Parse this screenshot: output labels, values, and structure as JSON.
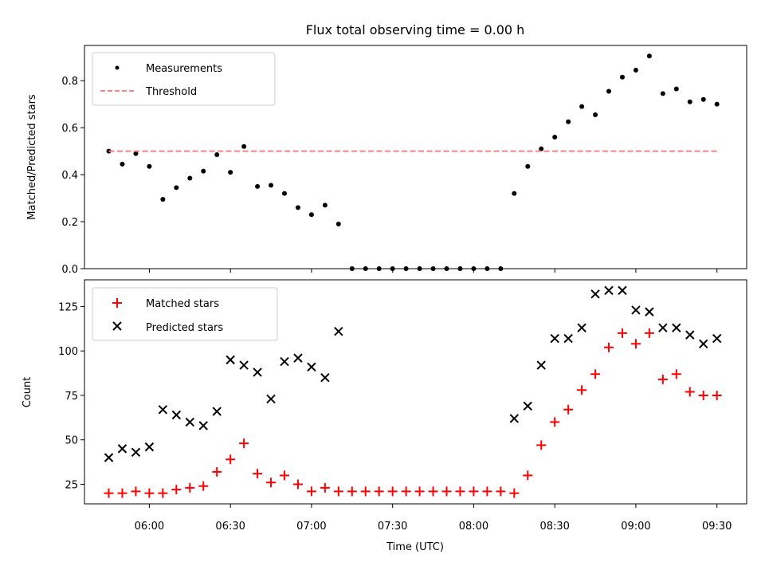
{
  "chart_data": [
    {
      "type": "scatter",
      "title": "Flux total observing time = 0.00 h",
      "xlabel": "",
      "ylabel": "Matched/Predicted stars",
      "ylim": [
        0,
        0.95
      ],
      "yticks": [
        0.0,
        0.2,
        0.4,
        0.6,
        0.8
      ],
      "ytick_labels": [
        "0.0",
        "0.2",
        "0.4",
        "0.6",
        "0.8"
      ],
      "legend_position": "upper-left",
      "series": [
        {
          "name": "Measurements",
          "style": "dot",
          "color": "#000000",
          "x": [
            "05:45",
            "05:50",
            "05:55",
            "06:00",
            "06:05",
            "06:10",
            "06:15",
            "06:20",
            "06:25",
            "06:30",
            "06:35",
            "06:40",
            "06:45",
            "06:50",
            "06:55",
            "07:00",
            "07:05",
            "07:10",
            "07:15",
            "07:20",
            "07:25",
            "07:30",
            "07:35",
            "07:40",
            "07:45",
            "07:50",
            "07:55",
            "08:00",
            "08:05",
            "08:10",
            "08:15",
            "08:20",
            "08:25",
            "08:30",
            "08:35",
            "08:40",
            "08:45",
            "08:50",
            "08:55",
            "09:00",
            "09:05",
            "09:10",
            "09:15",
            "09:20",
            "09:25",
            "09:30"
          ],
          "y": [
            0.5,
            0.445,
            0.49,
            0.435,
            0.295,
            0.345,
            0.385,
            0.415,
            0.485,
            0.41,
            0.52,
            0.35,
            0.355,
            0.32,
            0.26,
            0.23,
            0.27,
            0.19,
            0,
            0,
            0,
            0,
            0,
            0,
            0,
            0,
            0,
            0,
            0,
            0,
            0.32,
            0.435,
            0.51,
            0.56,
            0.625,
            0.69,
            0.655,
            0.755,
            0.815,
            0.845,
            0.905,
            0.745,
            0.765,
            0.71,
            0.72,
            0.7
          ]
        },
        {
          "name": "Threshold",
          "style": "dashed-line",
          "color": "#ff8080",
          "x": [
            "05:45",
            "09:30"
          ],
          "y": [
            0.5,
            0.5
          ]
        }
      ]
    },
    {
      "type": "scatter",
      "title": "",
      "xlabel": "Time (UTC)",
      "ylabel": "Count",
      "ylim": [
        14,
        140
      ],
      "yticks": [
        25,
        50,
        75,
        100,
        125
      ],
      "ytick_labels": [
        "25",
        "50",
        "75",
        "100",
        "125"
      ],
      "xlim": [
        "05:36",
        "09:41"
      ],
      "xticks": [
        "06:00",
        "06:30",
        "07:00",
        "07:30",
        "08:00",
        "08:30",
        "09:00",
        "09:30"
      ],
      "legend_position": "upper-left",
      "series": [
        {
          "name": "Matched stars",
          "marker": "plus",
          "color": "#ff0000",
          "x": [
            "05:45",
            "05:50",
            "05:55",
            "06:00",
            "06:05",
            "06:10",
            "06:15",
            "06:20",
            "06:25",
            "06:30",
            "06:35",
            "06:40",
            "06:45",
            "06:50",
            "06:55",
            "07:00",
            "07:05",
            "07:10",
            "07:15",
            "07:20",
            "07:25",
            "07:30",
            "07:35",
            "07:40",
            "07:45",
            "07:50",
            "07:55",
            "08:00",
            "08:05",
            "08:10",
            "08:15",
            "08:20",
            "08:25",
            "08:30",
            "08:35",
            "08:40",
            "08:45",
            "08:50",
            "08:55",
            "09:00",
            "09:05",
            "09:10",
            "09:15",
            "09:20",
            "09:25",
            "09:30"
          ],
          "y": [
            20,
            20,
            21,
            20,
            20,
            22,
            23,
            24,
            32,
            39,
            48,
            31,
            26,
            30,
            25,
            21,
            23,
            21,
            21,
            21,
            21,
            21,
            21,
            21,
            21,
            21,
            21,
            21,
            21,
            21,
            20,
            30,
            47,
            60,
            67,
            78,
            87,
            102,
            110,
            104,
            110,
            84,
            87,
            77,
            75,
            75
          ]
        },
        {
          "name": "Predicted stars",
          "marker": "x",
          "color": "#000000",
          "x": [
            "05:45",
            "05:50",
            "05:55",
            "06:00",
            "06:05",
            "06:10",
            "06:15",
            "06:20",
            "06:25",
            "06:30",
            "06:35",
            "06:40",
            "06:45",
            "06:50",
            "06:55",
            "07:00",
            "07:05",
            "07:10",
            "08:15",
            "08:20",
            "08:25",
            "08:30",
            "08:35",
            "08:40",
            "08:45",
            "08:50",
            "08:55",
            "09:00",
            "09:05",
            "09:10",
            "09:15",
            "09:20",
            "09:25",
            "09:30"
          ],
          "y": [
            40,
            45,
            43,
            46,
            67,
            64,
            60,
            58,
            66,
            95,
            92,
            88,
            73,
            94,
            96,
            91,
            85,
            111,
            62,
            69,
            92,
            107,
            107,
            113,
            132,
            134,
            134,
            123,
            122,
            113,
            113,
            109,
            104,
            107
          ]
        }
      ]
    }
  ]
}
